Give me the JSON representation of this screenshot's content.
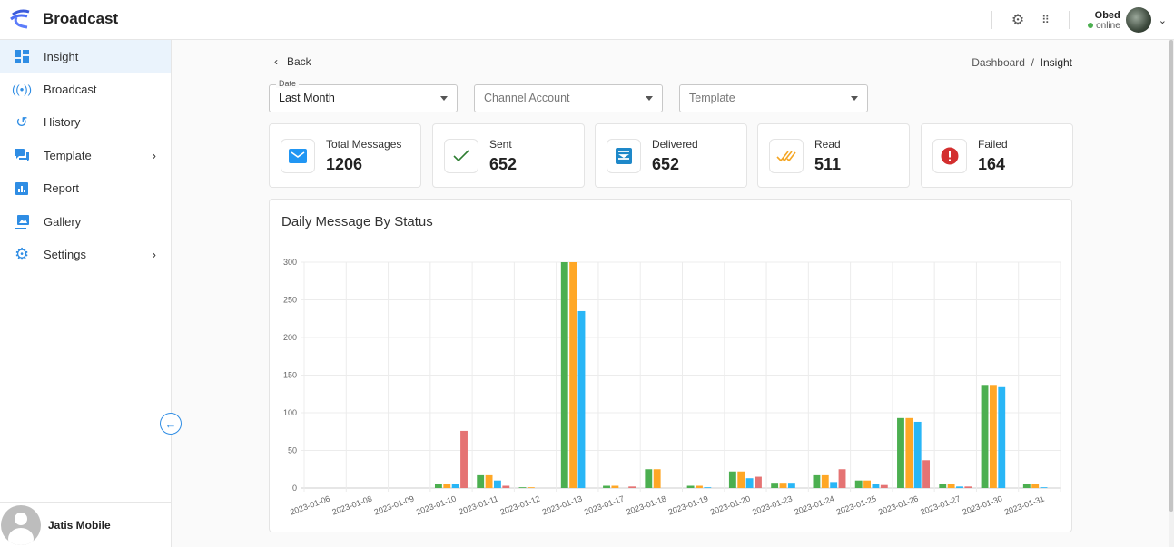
{
  "app": {
    "title": "Broadcast"
  },
  "header": {
    "user_name": "Obed",
    "user_status": "online"
  },
  "sidebar": {
    "items": [
      {
        "label": "Insight",
        "icon": "dashboard-icon",
        "active": true
      },
      {
        "label": "Broadcast",
        "icon": "antenna-icon"
      },
      {
        "label": "History",
        "icon": "history-icon"
      },
      {
        "label": "Template",
        "icon": "chat-icon",
        "submenu": true
      },
      {
        "label": "Report",
        "icon": "report-icon"
      },
      {
        "label": "Gallery",
        "icon": "gallery-icon"
      },
      {
        "label": "Settings",
        "icon": "gear-icon",
        "submenu": true
      }
    ],
    "footer_name": "Jatis Mobile"
  },
  "page": {
    "back_label": "Back",
    "breadcrumb": [
      "Dashboard",
      "Insight"
    ]
  },
  "filters": {
    "date": {
      "label": "Date",
      "value": "Last Month"
    },
    "channel": {
      "placeholder": "Channel Account"
    },
    "template": {
      "placeholder": "Template"
    }
  },
  "stats": [
    {
      "label": "Total Messages",
      "value": "1206",
      "icon": "mail-icon",
      "color": "#2196f3"
    },
    {
      "label": "Sent",
      "value": "652",
      "icon": "check-icon",
      "color": "#2e7d32"
    },
    {
      "label": "Delivered",
      "value": "652",
      "icon": "inbox-icon",
      "color": "#1e88c9"
    },
    {
      "label": "Read",
      "value": "511",
      "icon": "double-check-icon",
      "color": "#f5a623"
    },
    {
      "label": "Failed",
      "value": "164",
      "icon": "error-icon",
      "color": "#d32f2f"
    }
  ],
  "chart_data": {
    "type": "bar",
    "title": "Daily Message By Status",
    "categories": [
      "2023-01-06",
      "2023-01-08",
      "2023-01-09",
      "2023-01-10",
      "2023-01-11",
      "2023-01-12",
      "2023-01-13",
      "2023-01-17",
      "2023-01-18",
      "2023-01-19",
      "2023-01-20",
      "2023-01-23",
      "2023-01-24",
      "2023-01-25",
      "2023-01-26",
      "2023-01-27",
      "2023-01-30",
      "2023-01-31"
    ],
    "series": [
      {
        "color": "#4caf50",
        "values": [
          0,
          0,
          0,
          6,
          17,
          1,
          300,
          3,
          25,
          3,
          22,
          7,
          17,
          10,
          93,
          6,
          137,
          6
        ]
      },
      {
        "color": "#ffa726",
        "values": [
          0,
          0,
          0,
          6,
          17,
          1,
          300,
          3,
          25,
          3,
          22,
          7,
          17,
          10,
          93,
          6,
          137,
          6
        ]
      },
      {
        "color": "#29b6f6",
        "values": [
          0,
          0,
          0,
          6,
          10,
          0,
          235,
          0,
          0,
          1,
          13,
          7,
          8,
          6,
          88,
          2,
          134,
          1
        ]
      },
      {
        "color": "#e57373",
        "values": [
          0,
          0,
          0,
          76,
          3,
          0,
          0,
          2,
          0,
          0,
          15,
          0,
          25,
          4,
          37,
          2,
          0,
          0
        ]
      }
    ],
    "yticks": [
      "0",
      "50",
      "100",
      "150",
      "200",
      "250",
      "300"
    ],
    "ylim": [
      0,
      300
    ],
    "grid": true
  }
}
